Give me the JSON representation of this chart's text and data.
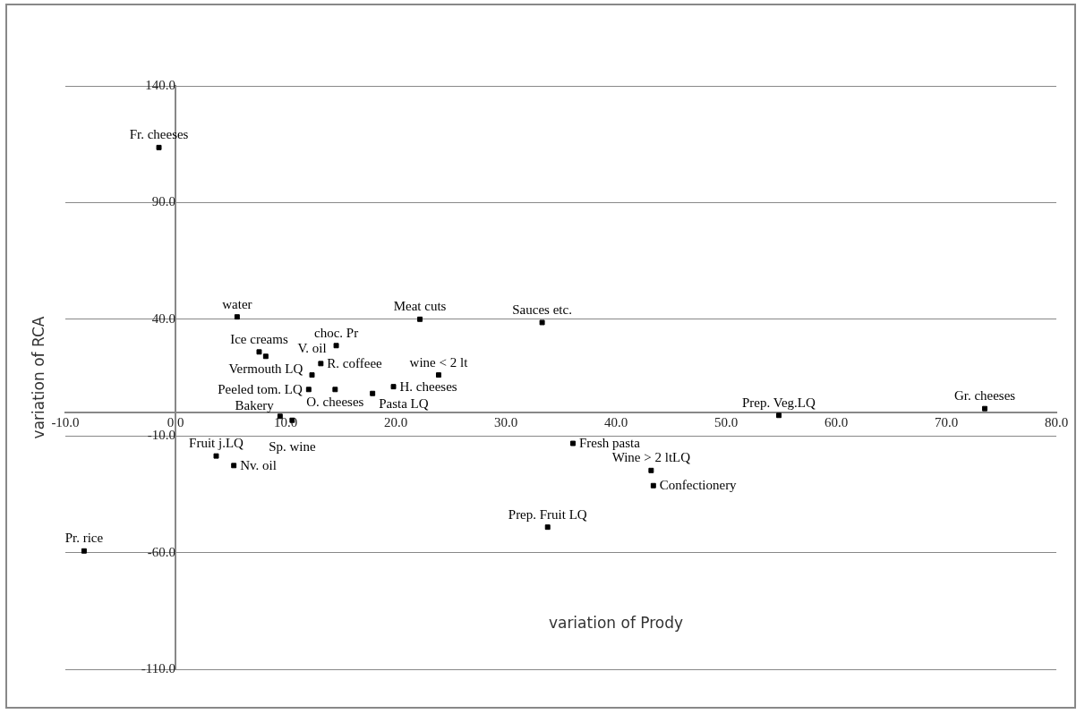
{
  "chart_data": {
    "type": "scatter",
    "xlabel": "variation of Prody",
    "ylabel": "variation of RCA",
    "x": [
      -1.5,
      5.6,
      22.2,
      33.3,
      7.6,
      8.2,
      14.6,
      13.2,
      12.4,
      12.1,
      14.5,
      17.9,
      19.8,
      23.9,
      9.5,
      10.6,
      36.1,
      43.2,
      43.4,
      33.8,
      54.8,
      73.5,
      3.7,
      5.3,
      -8.3
    ],
    "values": [
      113.6,
      41,
      40,
      38.6,
      26,
      24.1,
      28.7,
      21,
      16.1,
      9.9,
      9.9,
      8.2,
      11.1,
      16.1,
      -1.6,
      -3.3,
      -13.2,
      -24.8,
      -31.3,
      -49.1,
      -1.2,
      1.7,
      -18.6,
      -22.7,
      -59.3
    ],
    "color": "#000000",
    "marker": "square",
    "grid": "y",
    "legend": false,
    "xlim": [
      -10,
      80
    ],
    "ylim": [
      -110,
      140
    ],
    "xticks": [
      {
        "value": -10,
        "label": "-10.0"
      },
      {
        "value": 0,
        "label": "0.0"
      },
      {
        "value": 10,
        "label": "10.0"
      },
      {
        "value": 20,
        "label": "20.0"
      },
      {
        "value": 30,
        "label": "30.0"
      },
      {
        "value": 40,
        "label": "40.0"
      },
      {
        "value": 50,
        "label": "50.0"
      },
      {
        "value": 60,
        "label": "60.0"
      },
      {
        "value": 70,
        "label": "70.0"
      },
      {
        "value": 80,
        "label": "80.0"
      }
    ],
    "yticks": [
      {
        "value": -110,
        "label": "-110.0"
      },
      {
        "value": -60,
        "label": "-60.0"
      },
      {
        "value": -10,
        "label": "-10.0"
      },
      {
        "value": 40,
        "label": "40.0"
      },
      {
        "value": 90,
        "label": "90.0"
      },
      {
        "value": 140,
        "label": "140.0"
      }
    ],
    "annotations": [
      {
        "text": "Fr. cheeses",
        "x": -1.5,
        "y": 113.6
      },
      {
        "text": "water",
        "x": 5.6,
        "y": 41
      },
      {
        "text": "Meat cuts",
        "x": 22.2,
        "y": 40
      },
      {
        "text": "Sauces etc.",
        "x": 33.3,
        "y": 38.6
      },
      {
        "text": "Ice creams",
        "x": 7.6,
        "y": 26
      },
      {
        "text": "Vermouth LQ",
        "x": 8.2,
        "y": 24.1
      },
      {
        "text": "choc. Pr",
        "x": 14.6,
        "y": 28.7
      },
      {
        "text": "R. coffeee",
        "x": 13.2,
        "y": 21
      },
      {
        "text": "V. oil",
        "x": 12.4,
        "y": 16.1
      },
      {
        "text": "Peeled tom. LQ",
        "x": 12.1,
        "y": 9.9
      },
      {
        "text": "O. cheeses",
        "x": 14.5,
        "y": 9.9
      },
      {
        "text": "Pasta LQ",
        "x": 17.9,
        "y": 8.2
      },
      {
        "text": "H. cheeses",
        "x": 19.8,
        "y": 11.1
      },
      {
        "text": "wine < 2 lt",
        "x": 23.9,
        "y": 16.1
      },
      {
        "text": "Bakery",
        "x": 9.5,
        "y": -1.6
      },
      {
        "text": "Sp. wine",
        "x": 10.6,
        "y": -3.3
      },
      {
        "text": "Fresh pasta",
        "x": 36.1,
        "y": -13.2
      },
      {
        "text": "Wine > 2 ltLQ",
        "x": 43.2,
        "y": -24.8
      },
      {
        "text": "Confectionery",
        "x": 43.4,
        "y": -31.3
      },
      {
        "text": "Prep. Fruit LQ",
        "x": 33.8,
        "y": -49.1
      },
      {
        "text": "Prep. Veg.LQ",
        "x": 54.8,
        "y": -1.2
      },
      {
        "text": "Gr. cheeses",
        "x": 73.5,
        "y": 1.7
      },
      {
        "text": "Fruit j.LQ",
        "x": 3.7,
        "y": -18.6
      },
      {
        "text": "Nv. oil",
        "x": 5.3,
        "y": -22.7
      },
      {
        "text": "Pr. rice",
        "x": -8.3,
        "y": -59.3
      }
    ]
  }
}
